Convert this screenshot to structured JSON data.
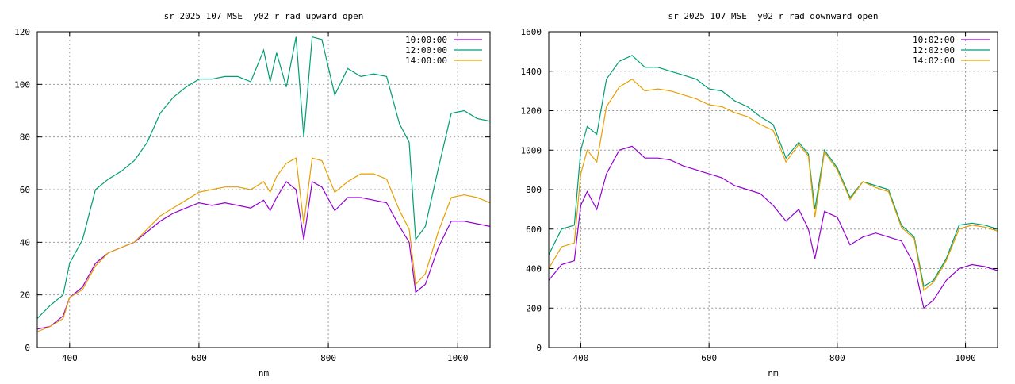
{
  "chart_data": [
    {
      "type": "line",
      "title": "sr_2025_107_MSE__y02_r_rad_upward_open",
      "xlabel": "nm",
      "ylabel": "",
      "xlim": [
        350,
        1050
      ],
      "ylim": [
        0,
        120
      ],
      "xticks": [
        400,
        600,
        800,
        1000
      ],
      "yticks": [
        0,
        20,
        40,
        60,
        80,
        100,
        120
      ],
      "grid": true,
      "legend_position": "top-right",
      "series": [
        {
          "name": "10:00:00",
          "color": "#9400d3",
          "x": [
            350,
            370,
            390,
            400,
            420,
            440,
            460,
            480,
            500,
            520,
            540,
            560,
            580,
            600,
            620,
            640,
            660,
            680,
            700,
            710,
            720,
            735,
            750,
            762,
            775,
            790,
            810,
            830,
            850,
            870,
            890,
            910,
            925,
            935,
            950,
            970,
            990,
            1010,
            1030,
            1050
          ],
          "y": [
            7,
            8,
            12,
            19,
            23,
            32,
            36,
            38,
            40,
            44,
            48,
            51,
            53,
            55,
            54,
            55,
            54,
            53,
            56,
            52,
            57,
            63,
            60,
            41,
            63,
            61,
            52,
            57,
            57,
            56,
            55,
            46,
            40,
            21,
            24,
            38,
            48,
            48,
            47,
            46
          ]
        },
        {
          "name": "12:00:00",
          "color": "#009e73",
          "x": [
            350,
            370,
            390,
            400,
            420,
            440,
            460,
            480,
            500,
            520,
            540,
            560,
            580,
            600,
            620,
            640,
            660,
            680,
            700,
            710,
            720,
            735,
            750,
            762,
            775,
            790,
            810,
            830,
            850,
            870,
            890,
            910,
            925,
            935,
            950,
            970,
            990,
            1010,
            1030,
            1050
          ],
          "y": [
            11,
            16,
            20,
            32,
            41,
            60,
            64,
            67,
            71,
            78,
            89,
            95,
            99,
            102,
            102,
            103,
            103,
            101,
            113,
            101,
            112,
            99,
            118,
            80,
            118,
            117,
            96,
            106,
            103,
            104,
            103,
            85,
            78,
            41,
            46,
            68,
            89,
            90,
            87,
            86
          ]
        },
        {
          "name": "14:00:00",
          "color": "#e69f00",
          "x": [
            350,
            370,
            390,
            400,
            420,
            440,
            460,
            480,
            500,
            520,
            540,
            560,
            580,
            600,
            620,
            640,
            660,
            680,
            700,
            710,
            720,
            735,
            750,
            762,
            775,
            790,
            810,
            830,
            850,
            870,
            890,
            910,
            925,
            935,
            950,
            970,
            990,
            1010,
            1030,
            1050
          ],
          "y": [
            6,
            8,
            11,
            19,
            22,
            31,
            36,
            38,
            40,
            45,
            50,
            53,
            56,
            59,
            60,
            61,
            61,
            60,
            63,
            59,
            65,
            70,
            72,
            47,
            72,
            71,
            59,
            63,
            66,
            66,
            64,
            52,
            45,
            24,
            28,
            44,
            57,
            58,
            57,
            55
          ]
        }
      ]
    },
    {
      "type": "line",
      "title": "sr_2025_107_MSE__y02_r_rad_downward_open",
      "xlabel": "nm",
      "ylabel": "",
      "xlim": [
        350,
        1050
      ],
      "ylim": [
        0,
        1600
      ],
      "xticks": [
        400,
        600,
        800,
        1000
      ],
      "yticks": [
        0,
        200,
        400,
        600,
        800,
        1000,
        1200,
        1400,
        1600
      ],
      "grid": true,
      "legend_position": "top-right",
      "series": [
        {
          "name": "10:02:00",
          "color": "#9400d3",
          "x": [
            350,
            370,
            390,
            400,
            410,
            425,
            440,
            460,
            480,
            500,
            520,
            540,
            560,
            580,
            600,
            620,
            640,
            660,
            680,
            700,
            720,
            740,
            755,
            765,
            780,
            800,
            820,
            840,
            860,
            880,
            900,
            920,
            935,
            950,
            970,
            990,
            1010,
            1030,
            1050
          ],
          "y": [
            340,
            420,
            440,
            720,
            790,
            700,
            880,
            1000,
            1020,
            960,
            960,
            950,
            920,
            900,
            880,
            860,
            820,
            800,
            780,
            720,
            640,
            700,
            600,
            450,
            690,
            660,
            520,
            560,
            580,
            560,
            540,
            420,
            200,
            240,
            340,
            400,
            420,
            410,
            390
          ]
        },
        {
          "name": "12:02:00",
          "color": "#009e73",
          "x": [
            350,
            370,
            390,
            400,
            410,
            425,
            440,
            460,
            480,
            500,
            520,
            540,
            560,
            580,
            600,
            620,
            640,
            660,
            680,
            700,
            720,
            740,
            755,
            765,
            780,
            800,
            820,
            840,
            860,
            880,
            900,
            920,
            935,
            950,
            970,
            990,
            1010,
            1030,
            1050
          ],
          "y": [
            470,
            600,
            620,
            1000,
            1120,
            1080,
            1360,
            1450,
            1480,
            1420,
            1420,
            1400,
            1380,
            1360,
            1310,
            1300,
            1250,
            1220,
            1170,
            1130,
            960,
            1040,
            980,
            700,
            1000,
            910,
            760,
            840,
            820,
            800,
            620,
            560,
            310,
            340,
            450,
            620,
            630,
            620,
            600
          ]
        },
        {
          "name": "14:02:00",
          "color": "#e69f00",
          "x": [
            350,
            370,
            390,
            400,
            410,
            425,
            440,
            460,
            480,
            500,
            520,
            540,
            560,
            580,
            600,
            620,
            640,
            660,
            680,
            700,
            720,
            740,
            755,
            765,
            780,
            800,
            820,
            840,
            860,
            880,
            900,
            920,
            935,
            950,
            970,
            990,
            1010,
            1030,
            1050
          ],
          "y": [
            400,
            510,
            530,
            880,
            1000,
            940,
            1220,
            1320,
            1360,
            1300,
            1310,
            1300,
            1280,
            1260,
            1230,
            1220,
            1190,
            1170,
            1130,
            1100,
            940,
            1030,
            970,
            660,
            990,
            900,
            750,
            840,
            810,
            790,
            610,
            550,
            290,
            330,
            440,
            600,
            620,
            610,
            590
          ]
        }
      ]
    }
  ]
}
